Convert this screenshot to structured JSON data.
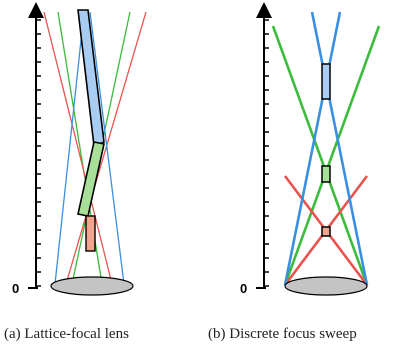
{
  "captions": {
    "a": "(a) Lattice-focal lens",
    "b": "(b) Discrete focus sweep"
  },
  "axis_zero": "0",
  "colors": {
    "blue": "#3a8fe0",
    "green": "#3cbc3c",
    "red": "#e8534e",
    "blue_fill": "#a9cdf2",
    "green_fill": "#a8df99",
    "red_fill": "#f3a48e",
    "lens_fill": "#c4c4c4",
    "axis": "#000000"
  }
}
